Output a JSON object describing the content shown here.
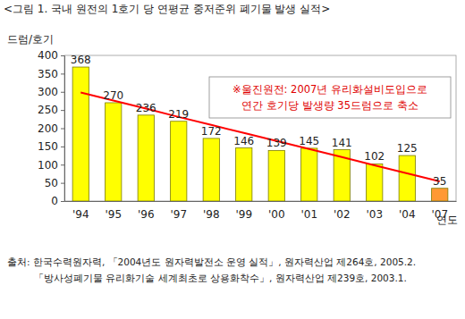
{
  "chart_data": {
    "type": "bar",
    "title": "<그림 1. 국내 원전의 1호기 당 연평균 중저준위 폐기물 발생 실적>",
    "y_label": "드럼/호기",
    "x_label": "연도",
    "categories": [
      "'94",
      "'95",
      "'96",
      "'97",
      "'98",
      "'99",
      "'00",
      "'01",
      "'02",
      "'03",
      "'04",
      "'07"
    ],
    "series": [
      {
        "type": "bar",
        "color": "#ffff00",
        "colors": [
          "#ffff00",
          "#ffff00",
          "#ffff00",
          "#ffff00",
          "#ffff00",
          "#ffff00",
          "#ffff00",
          "#ffff00",
          "#ffff00",
          "#ffff00",
          "#ffff00",
          "#ff9933"
        ],
        "values": [
          368,
          270,
          236,
          219,
          172,
          146,
          139,
          145,
          141,
          102,
          125,
          35
        ],
        "data_labels": true
      },
      {
        "type": "line",
        "color": "#ff0000",
        "line_style": "solid",
        "values": [
          298,
          276,
          254,
          231,
          209,
          187,
          165,
          143,
          121,
          98,
          76,
          54
        ]
      }
    ],
    "ylim": [
      0,
      400
    ],
    "yticks": [
      0,
      50,
      100,
      150,
      200,
      250,
      300,
      350,
      400
    ],
    "grid": false,
    "annotation": [
      "※울진원전: 2007년 유리화설비도입으로",
      "연간 호기당 발생량 35드럼으로 축소"
    ],
    "source": [
      "출처: 한국수력원자력, 「2004년도 원자력발전소 운영 실적」, 원자력산업 제264호, 2005.2.",
      "「방사성폐기물 유리화기술 세계최초로 상용화착수」, 원자력산업 제239호, 2003.1."
    ]
  }
}
